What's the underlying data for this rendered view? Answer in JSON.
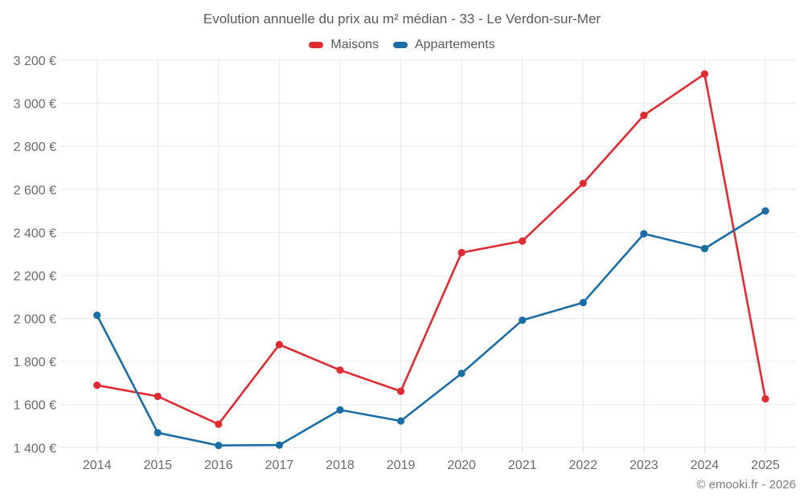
{
  "chart": {
    "title": "Evolution annuelle du prix au m² médian - 33 - Le Verdon-sur-Mer",
    "footer": "© emooki.fr - 2026"
  },
  "chart_data": {
    "type": "line",
    "title": "Evolution annuelle du prix au m² médian - 33 - Le Verdon-sur-Mer",
    "categories": [
      "2014",
      "2015",
      "2016",
      "2017",
      "2018",
      "2019",
      "2020",
      "2021",
      "2022",
      "2023",
      "2024",
      "2025"
    ],
    "series": [
      {
        "name": "Maisons",
        "color": "#e02b33",
        "values": [
          1690,
          1638,
          1509,
          1879,
          1760,
          1662,
          2306,
          2360,
          2628,
          2944,
          3136,
          1627
        ]
      },
      {
        "name": "Appartements",
        "color": "#1b6da6",
        "values": [
          2015,
          1469,
          1410,
          1412,
          1575,
          1524,
          1745,
          1992,
          2074,
          2394,
          2325,
          2500
        ]
      }
    ],
    "xlabel": "",
    "ylabel": "",
    "ylim": [
      1400,
      3200
    ],
    "y_ticks": [
      3200,
      3000,
      2800,
      2600,
      2400,
      2200,
      2000,
      1800,
      1600,
      1400
    ],
    "y_tick_labels": [
      "3 200 €",
      "3 000 €",
      "2 800 €",
      "2 600 €",
      "2 400 €",
      "2 200 €",
      "2 000 €",
      "1 800 €",
      "1 600 €",
      "1 400 €"
    ],
    "grid": true,
    "legend_position": "top",
    "currency": "€"
  }
}
